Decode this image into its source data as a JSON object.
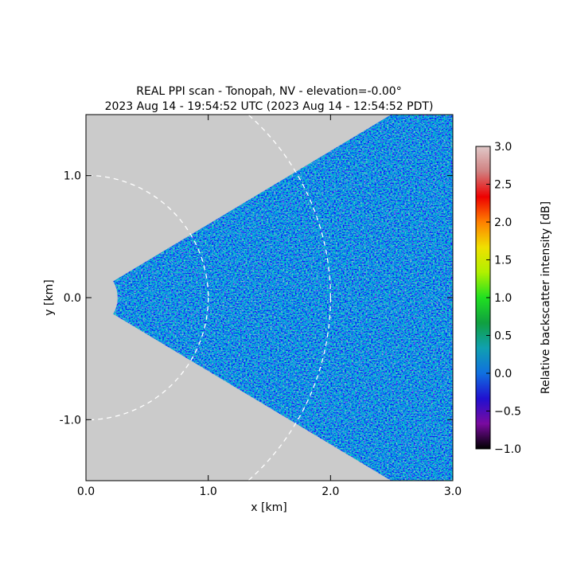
{
  "chart_data": {
    "type": "ppi",
    "title": "REAL PPI scan - Tonopah, NV - elevation=-0.00°",
    "subtitle": "2023 Aug 14 - 19:54:52 UTC (2023 Aug 14 - 12:54:52 PDT)",
    "x_label": "x [km]",
    "y_label": "y [km]",
    "xlim": [
      0,
      3
    ],
    "ylim": [
      -1.5,
      1.5
    ],
    "xticks": [
      {
        "value": 0,
        "label": "0.0"
      },
      {
        "value": 1,
        "label": "1.0"
      },
      {
        "value": 2,
        "label": "2.0"
      },
      {
        "value": 3,
        "label": "3.0"
      }
    ],
    "yticks": [
      {
        "value": -1,
        "label": "-1.0"
      },
      {
        "value": 0,
        "label": "0.0"
      },
      {
        "value": 1,
        "label": "1.0"
      }
    ],
    "colorbar_label": "Relative backscatter intensity [dB]",
    "clim": [
      -1,
      3
    ],
    "cticks": [
      {
        "value": -1,
        "label": "−1.0"
      },
      {
        "value": -0.5,
        "label": "−0.5"
      },
      {
        "value": 0,
        "label": "0.0"
      },
      {
        "value": 0.5,
        "label": "0.5"
      },
      {
        "value": 1,
        "label": "1.0"
      },
      {
        "value": 1.5,
        "label": "1.5"
      },
      {
        "value": 2,
        "label": "2.0"
      },
      {
        "value": 2.5,
        "label": "2.5"
      },
      {
        "value": 3,
        "label": "3.0"
      }
    ],
    "colormap": [
      "#000000",
      "#7a0aa0",
      "#2010d0",
      "#1070e0",
      "#10a0b0",
      "#10a040",
      "#20e020",
      "#b0f000",
      "#f0e000",
      "#ff8000",
      "#ee0000",
      "#d08080",
      "#e0c8c8"
    ],
    "range_rings": [
      1,
      2
    ],
    "background": "#cbcbcb"
  }
}
